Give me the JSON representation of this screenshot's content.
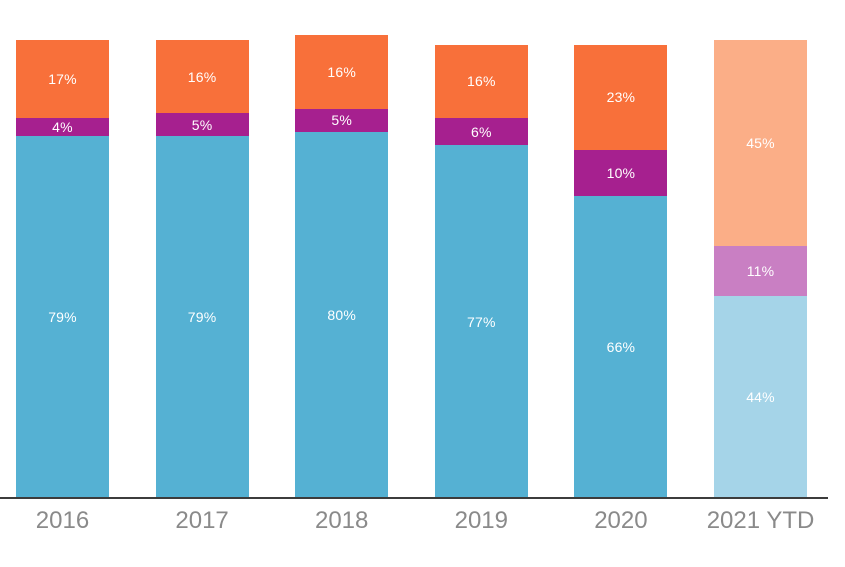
{
  "chart_data": {
    "type": "bar",
    "stacked": true,
    "orientation": "vertical",
    "title": "",
    "xlabel": "",
    "ylabel": "",
    "legend": "none",
    "grid": false,
    "label_format": "percent",
    "categories": [
      "2016",
      "2017",
      "2018",
      "2019",
      "2020",
      "2021 YTD"
    ],
    "muted_categories": [
      "2021 YTD"
    ],
    "series": [
      {
        "name": "bottom-segment",
        "color": "#55B1D3",
        "muted_color": "#A5D4E8",
        "values": [
          79,
          79,
          80,
          77,
          66,
          44
        ]
      },
      {
        "name": "middle-segment",
        "color": "#A6208F",
        "muted_color": "#C97FC3",
        "values": [
          4,
          5,
          5,
          6,
          10,
          11
        ]
      },
      {
        "name": "top-segment",
        "color": "#F8703A",
        "muted_color": "#FBAE87",
        "values": [
          17,
          16,
          16,
          16,
          23,
          45
        ]
      }
    ],
    "segment_labels": [
      [
        "79%",
        "79%",
        "80%",
        "77%",
        "66%",
        "44%"
      ],
      [
        "4%",
        "5%",
        "5%",
        "6%",
        "10%",
        "11%"
      ],
      [
        "17%",
        "16%",
        "16%",
        "16%",
        "23%",
        "45%"
      ]
    ],
    "colors": {
      "axis_line": "#3C3C3C",
      "axis_label": "#8A8A8A",
      "segment_label": "#FFFFFF",
      "background": "#FFFFFF"
    }
  }
}
